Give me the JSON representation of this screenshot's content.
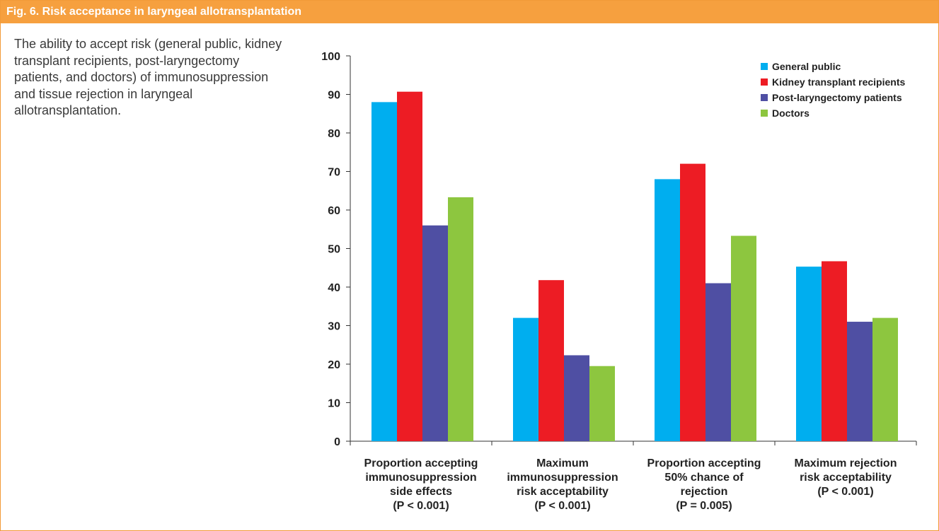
{
  "figure": {
    "header_title": "Fig. 6. Risk acceptance in laryngeal allotransplantation",
    "caption": "The ability to accept risk (general public, kidney transplant recipients, post-laryngectomy patients, and doctors) of immunosuppression and tissue rejection in laryngeal allotransplantation."
  },
  "colors": {
    "header_bg": "#f6a03f",
    "series": [
      "#00aeef",
      "#ed1c24",
      "#4f4fa3",
      "#8dc63f"
    ]
  },
  "chart_data": {
    "type": "bar",
    "title": "",
    "xlabel": "",
    "ylabel": "",
    "ylim": [
      0,
      100
    ],
    "yticks": [
      0,
      10,
      20,
      30,
      40,
      50,
      60,
      70,
      80,
      90,
      100
    ],
    "grid": false,
    "legend_position": "top-right",
    "categories": [
      [
        "Proportion accepting",
        "immunosuppression",
        "side effects",
        "(P < 0.001)"
      ],
      [
        "Maximum",
        "immunosuppression",
        "risk acceptability",
        "(P < 0.001)"
      ],
      [
        "Proportion accepting",
        "50% chance of",
        "rejection",
        "(P = 0.005)"
      ],
      [
        "Maximum rejection",
        "risk acceptability",
        "(P < 0.001)"
      ]
    ],
    "series": [
      {
        "name": "General public",
        "values": [
          88,
          32,
          68,
          45.3
        ]
      },
      {
        "name": "Kidney transplant recipients",
        "values": [
          90.7,
          41.8,
          72,
          46.7
        ]
      },
      {
        "name": "Post-laryngectomy patients",
        "values": [
          56,
          22.3,
          41,
          31
        ]
      },
      {
        "name": "Doctors",
        "values": [
          63.3,
          19.5,
          53.3,
          32
        ]
      }
    ]
  }
}
